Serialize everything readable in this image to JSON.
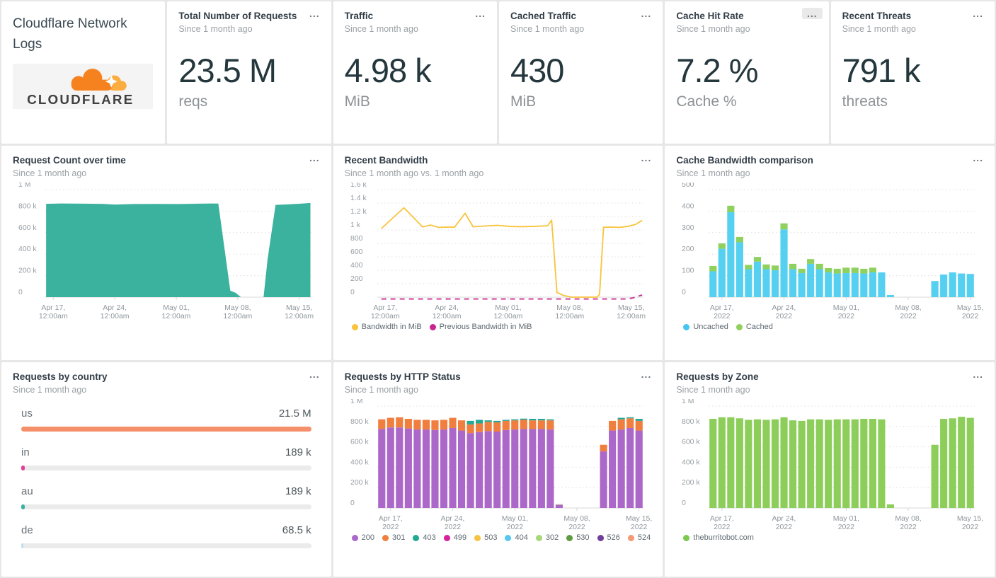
{
  "app": {
    "title": "Cloudflare Network Logs",
    "logo_text": "CLOUDFLARE",
    "menu_icon": "..."
  },
  "stats": [
    {
      "title": "Total Number of Requests",
      "subtitle": "Since 1 month ago",
      "value": "23.5 M",
      "unit": "reqs"
    },
    {
      "title": "Traffic",
      "subtitle": "Since 1 month ago",
      "value": "4.98 k",
      "unit": "MiB"
    },
    {
      "title": "Cached Traffic",
      "subtitle": "Since 1 month ago",
      "value": "430",
      "unit": "MiB"
    },
    {
      "title": "Cache Hit Rate",
      "subtitle": "Since 1 month ago",
      "value": "7.2 %",
      "unit": "Cache %"
    },
    {
      "title": "Recent Threats",
      "subtitle": "Since 1 month ago",
      "value": "791 k",
      "unit": "threats"
    }
  ],
  "panels": {
    "request_count": {
      "title": "Request Count over time",
      "subtitle": "Since 1 month ago"
    },
    "bandwidth": {
      "title": "Recent Bandwidth",
      "subtitle": "Since 1 month ago vs. 1 month ago"
    },
    "cache_bandwidth": {
      "title": "Cache Bandwidth comparison",
      "subtitle": "Since 1 month ago"
    },
    "country": {
      "title": "Requests by country",
      "subtitle": "Since 1 month ago"
    },
    "http_status": {
      "title": "Requests by HTTP Status",
      "subtitle": "Since 1 month ago"
    },
    "zone": {
      "title": "Requests by Zone",
      "subtitle": "Since 1 month ago"
    }
  },
  "chart_data": [
    {
      "id": "request_count",
      "type": "area",
      "title": "Request Count over time",
      "unit": "requests (thousands)",
      "color": "#3BB29E",
      "height": 196,
      "ylim": [
        0,
        1000
      ],
      "grid": "dotted",
      "legend_position": "none",
      "yticks": [
        {
          "v": 0,
          "label": "0"
        },
        {
          "v": 200,
          "label": "200 k"
        },
        {
          "v": 400,
          "label": "400 k"
        },
        {
          "v": 600,
          "label": "600 k"
        },
        {
          "v": 800,
          "label": "800 k"
        },
        {
          "v": 1000,
          "label": "1 M"
        }
      ],
      "xticks": [
        {
          "pos": 3,
          "l1": "Apr 17,",
          "l2": "12:00am"
        },
        {
          "pos": 26.1,
          "l1": "Apr 24,",
          "l2": "12:00am"
        },
        {
          "pos": 49.2,
          "l1": "May 01,",
          "l2": "12:00am"
        },
        {
          "pos": 72.3,
          "l1": "May 08,",
          "l2": "12:00am"
        },
        {
          "pos": 95.4,
          "l1": "May 15,",
          "l2": "12:00am"
        }
      ],
      "points": [
        [
          0.3,
          868
        ],
        [
          6,
          871
        ],
        [
          14,
          869
        ],
        [
          22,
          867
        ],
        [
          26,
          861
        ],
        [
          33,
          866
        ],
        [
          42,
          867
        ],
        [
          50,
          866
        ],
        [
          58,
          869
        ],
        [
          63,
          871
        ],
        [
          65,
          870
        ],
        [
          69.5,
          60
        ],
        [
          71.5,
          40
        ],
        [
          73.5,
          0
        ],
        [
          82,
          0
        ],
        [
          83.5,
          350
        ],
        [
          86.5,
          858
        ],
        [
          91,
          863
        ],
        [
          96,
          869
        ],
        [
          99.6,
          876
        ]
      ]
    },
    {
      "id": "bandwidth",
      "type": "line",
      "title": "Recent Bandwidth",
      "unit": "MiB",
      "height": 196,
      "ylim": [
        0,
        1600
      ],
      "grid": "dotted",
      "legend_position": "bottom-left",
      "yticks": [
        {
          "v": 0,
          "label": "0"
        },
        {
          "v": 200,
          "label": "200"
        },
        {
          "v": 400,
          "label": "400"
        },
        {
          "v": 600,
          "label": "600"
        },
        {
          "v": 800,
          "label": "800"
        },
        {
          "v": 1000,
          "label": "1 k"
        },
        {
          "v": 1200,
          "label": "1.2 k"
        },
        {
          "v": 1400,
          "label": "1.4 k"
        },
        {
          "v": 1600,
          "label": "1.6 k"
        }
      ],
      "xticks": [
        {
          "pos": 3,
          "l1": "Apr 17,",
          "l2": "12:00am"
        },
        {
          "pos": 26.1,
          "l1": "Apr 24,",
          "l2": "12:00am"
        },
        {
          "pos": 49.2,
          "l1": "May 01,",
          "l2": "12:00am"
        },
        {
          "pos": 72.3,
          "l1": "May 08,",
          "l2": "12:00am"
        },
        {
          "pos": 95.4,
          "l1": "May 15,",
          "l2": "12:00am"
        }
      ],
      "series": [
        {
          "name": "Bandwidth in MiB",
          "color": "#F9C33C",
          "dash": null,
          "points": [
            [
              1.5,
              1020
            ],
            [
              10,
              1330
            ],
            [
              17,
              1045
            ],
            [
              20,
              1072
            ],
            [
              23,
              1038
            ],
            [
              26,
              1042
            ],
            [
              29,
              1040
            ],
            [
              33,
              1248
            ],
            [
              36,
              1046
            ],
            [
              40,
              1058
            ],
            [
              45,
              1068
            ],
            [
              50,
              1052
            ],
            [
              54,
              1048
            ],
            [
              58,
              1052
            ],
            [
              61,
              1056
            ],
            [
              64,
              1062
            ],
            [
              65.5,
              1145
            ],
            [
              67.5,
              70
            ],
            [
              70,
              25
            ],
            [
              73,
              0
            ],
            [
              78,
              0
            ],
            [
              82.5,
              0
            ],
            [
              83.5,
              40
            ],
            [
              85,
              1040
            ],
            [
              88,
              1042
            ],
            [
              91,
              1038
            ],
            [
              94,
              1052
            ],
            [
              97,
              1082
            ],
            [
              99.5,
              1142
            ]
          ]
        },
        {
          "name": "Previous Bandwidth in MiB",
          "color": "#C9258F",
          "dash": "7,6",
          "points": [
            [
              1.5,
              -28
            ],
            [
              93,
              -28
            ],
            [
              96,
              -12
            ],
            [
              99.5,
              32
            ]
          ]
        }
      ],
      "legend": [
        {
          "label": "Bandwidth in MiB",
          "color": "#F9C33C"
        },
        {
          "label": "Previous Bandwidth in MiB",
          "color": "#C9258F"
        }
      ]
    },
    {
      "id": "cache_bandwidth",
      "type": "stacked_bar",
      "title": "Cache Bandwidth comparison",
      "unit": "MiB",
      "height": 196,
      "ylim": [
        0,
        500
      ],
      "grid": "dotted",
      "legend_position": "bottom-left",
      "yticks": [
        {
          "v": 0,
          "label": "0"
        },
        {
          "v": 100,
          "label": "100"
        },
        {
          "v": 200,
          "label": "200"
        },
        {
          "v": 300,
          "label": "300"
        },
        {
          "v": 400,
          "label": "400"
        },
        {
          "v": 500,
          "label": "500"
        }
      ],
      "xticks": [
        {
          "pos": 5,
          "l1": "Apr 17,",
          "l2": "2022"
        },
        {
          "pos": 28.3,
          "l1": "Apr 24,",
          "l2": "2022"
        },
        {
          "pos": 51.7,
          "l1": "May 01,",
          "l2": "2022"
        },
        {
          "pos": 75,
          "l1": "May 08,",
          "l2": "2022"
        },
        {
          "pos": 98.3,
          "l1": "May 15,",
          "l2": "2022"
        }
      ],
      "categories": [
        "Apr 16",
        "Apr 17",
        "Apr 18",
        "Apr 19",
        "Apr 20",
        "Apr 21",
        "Apr 22",
        "Apr 23",
        "Apr 24",
        "Apr 25",
        "Apr 26",
        "Apr 27",
        "Apr 28",
        "Apr 29",
        "Apr 30",
        "May 01",
        "May 02",
        "May 03",
        "May 04",
        "May 05",
        "May 06",
        "May 07",
        "May 08",
        "May 09",
        "May 10",
        "May 11",
        "May 12",
        "May 13",
        "May 14",
        "May 15"
      ],
      "series": [
        {
          "name": "Uncached",
          "color": "#55D0F0",
          "values": [
            120,
            225,
            395,
            255,
            130,
            165,
            130,
            125,
            315,
            130,
            112,
            155,
            130,
            115,
            110,
            112,
            112,
            110,
            115,
            115,
            10,
            0,
            0,
            0,
            0,
            75,
            105,
            115,
            110,
            108
          ]
        },
        {
          "name": "Cached",
          "color": "#8FD05E",
          "values": [
            25,
            25,
            30,
            25,
            20,
            22,
            22,
            22,
            28,
            25,
            20,
            22,
            25,
            20,
            22,
            25,
            25,
            22,
            22,
            0,
            0,
            0,
            0,
            0,
            0,
            0,
            0,
            0,
            0,
            0
          ]
        }
      ],
      "legend": [
        {
          "label": "Uncached",
          "color": "#45C5EF"
        },
        {
          "label": "Cached",
          "color": "#8FD05E"
        }
      ]
    },
    {
      "id": "country",
      "type": "bar_gauge",
      "title": "Requests by country",
      "rows": [
        {
          "label": "us",
          "value": "21.5 M",
          "pct": 100,
          "color": "#F6906B"
        },
        {
          "label": "in",
          "value": "189 k",
          "pct": 1.1,
          "color": "#E23F96"
        },
        {
          "label": "au",
          "value": "189 k",
          "pct": 1.1,
          "color": "#3BB29E"
        },
        {
          "label": "de",
          "value": "68.5 k",
          "pct": 0.5,
          "color": "#BFE0EF"
        }
      ]
    },
    {
      "id": "http_status",
      "type": "stacked_bar",
      "title": "Requests by HTTP Status",
      "unit": "requests (thousands)",
      "height": 188,
      "ylim": [
        0,
        1000
      ],
      "grid": "dotted",
      "legend_position": "bottom-left",
      "yticks": [
        {
          "v": 0,
          "label": "0"
        },
        {
          "v": 200,
          "label": "200 k"
        },
        {
          "v": 400,
          "label": "400 k"
        },
        {
          "v": 600,
          "label": "600 k"
        },
        {
          "v": 800,
          "label": "800 k"
        },
        {
          "v": 1000,
          "label": "1 M"
        }
      ],
      "xticks": [
        {
          "pos": 5,
          "l1": "Apr 17,",
          "l2": "2022"
        },
        {
          "pos": 28.3,
          "l1": "Apr 24,",
          "l2": "2022"
        },
        {
          "pos": 51.7,
          "l1": "May 01,",
          "l2": "2022"
        },
        {
          "pos": 75,
          "l1": "May 08,",
          "l2": "2022"
        },
        {
          "pos": 98.3,
          "l1": "May 15,",
          "l2": "2022"
        }
      ],
      "categories": [
        "Apr 16",
        "Apr 17",
        "Apr 18",
        "Apr 19",
        "Apr 20",
        "Apr 21",
        "Apr 22",
        "Apr 23",
        "Apr 24",
        "Apr 25",
        "Apr 26",
        "Apr 27",
        "Apr 28",
        "Apr 29",
        "Apr 30",
        "May 01",
        "May 02",
        "May 03",
        "May 04",
        "May 05",
        "May 06",
        "May 07",
        "May 08",
        "May 09",
        "May 10",
        "May 11",
        "May 12",
        "May 13",
        "May 14",
        "May 15"
      ],
      "series": [
        {
          "name": "200",
          "color": "#AB68C9",
          "values": [
            775,
            790,
            790,
            780,
            770,
            770,
            765,
            770,
            785,
            760,
            735,
            745,
            755,
            750,
            765,
            770,
            775,
            775,
            775,
            770,
            30,
            0,
            0,
            0,
            0,
            555,
            760,
            770,
            785,
            760
          ]
        },
        {
          "name": "301",
          "color": "#F07E3E",
          "values": [
            95,
            95,
            100,
            95,
            95,
            95,
            95,
            95,
            100,
            100,
            85,
            85,
            90,
            90,
            90,
            90,
            90,
            85,
            85,
            90,
            0,
            0,
            0,
            0,
            0,
            65,
            95,
            100,
            95,
            95
          ]
        },
        {
          "name": "403",
          "color": "#23A895",
          "values": [
            0,
            0,
            0,
            0,
            0,
            0,
            0,
            0,
            0,
            0,
            35,
            35,
            15,
            15,
            10,
            10,
            12,
            15,
            15,
            10,
            0,
            0,
            0,
            0,
            0,
            0,
            0,
            15,
            10,
            20
          ]
        },
        {
          "name": "524",
          "color": "#C9B9A4",
          "values": [
            0,
            0,
            0,
            0,
            0,
            0,
            0,
            0,
            0,
            0,
            0,
            0,
            0,
            0,
            0,
            0,
            0,
            0,
            0,
            0,
            8,
            0,
            0,
            0,
            0,
            0,
            0,
            0,
            0,
            0
          ]
        }
      ],
      "legend": [
        {
          "label": "200",
          "color": "#AB68C9"
        },
        {
          "label": "301",
          "color": "#F07E3E"
        },
        {
          "label": "403",
          "color": "#23A895"
        },
        {
          "label": "499",
          "color": "#D6219C"
        },
        {
          "label": "503",
          "color": "#F5C344"
        },
        {
          "label": "404",
          "color": "#56C8EE"
        },
        {
          "label": "302",
          "color": "#A8D878"
        },
        {
          "label": "530",
          "color": "#5E9C3F"
        },
        {
          "label": "526",
          "color": "#6F3F99"
        },
        {
          "label": "524",
          "color": "#F59A77"
        }
      ]
    },
    {
      "id": "zone",
      "type": "stacked_bar",
      "title": "Requests by Zone",
      "unit": "requests (thousands)",
      "height": 188,
      "ylim": [
        0,
        1000
      ],
      "grid": "dotted",
      "legend_position": "bottom-left",
      "yticks": [
        {
          "v": 0,
          "label": "0"
        },
        {
          "v": 200,
          "label": "200 k"
        },
        {
          "v": 400,
          "label": "400 k"
        },
        {
          "v": 600,
          "label": "600 k"
        },
        {
          "v": 800,
          "label": "800 k"
        },
        {
          "v": 1000,
          "label": "1 M"
        }
      ],
      "xticks": [
        {
          "pos": 5,
          "l1": "Apr 17,",
          "l2": "2022"
        },
        {
          "pos": 28.3,
          "l1": "Apr 24,",
          "l2": "2022"
        },
        {
          "pos": 51.7,
          "l1": "May 01,",
          "l2": "2022"
        },
        {
          "pos": 75,
          "l1": "May 08,",
          "l2": "2022"
        },
        {
          "pos": 98.3,
          "l1": "May 15,",
          "l2": "2022"
        }
      ],
      "categories": [
        "Apr 16",
        "Apr 17",
        "Apr 18",
        "Apr 19",
        "Apr 20",
        "Apr 21",
        "Apr 22",
        "Apr 23",
        "Apr 24",
        "Apr 25",
        "Apr 26",
        "Apr 27",
        "Apr 28",
        "Apr 29",
        "Apr 30",
        "May 01",
        "May 02",
        "May 03",
        "May 04",
        "May 05",
        "May 06",
        "May 07",
        "May 08",
        "May 09",
        "May 10",
        "May 11",
        "May 12",
        "May 13",
        "May 14",
        "May 15"
      ],
      "series": [
        {
          "name": "theburritobot.com",
          "color": "#8CCE59",
          "values": [
            875,
            890,
            890,
            880,
            865,
            870,
            865,
            870,
            890,
            860,
            855,
            870,
            870,
            865,
            870,
            870,
            870,
            875,
            875,
            870,
            35,
            0,
            0,
            0,
            0,
            620,
            875,
            880,
            895,
            885
          ]
        }
      ],
      "legend": [
        {
          "label": "theburritobot.com",
          "color": "#7DC84F"
        }
      ]
    }
  ]
}
